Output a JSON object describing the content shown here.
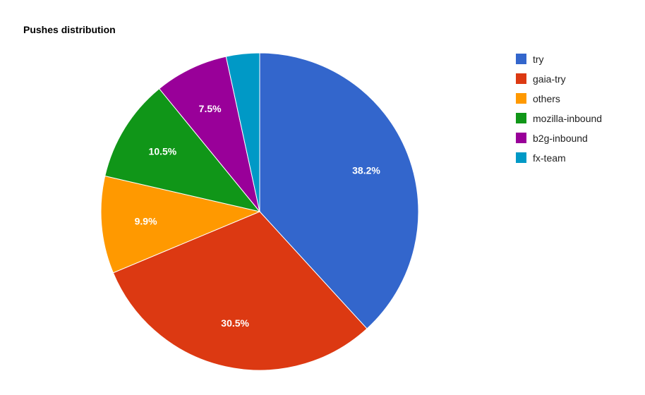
{
  "chart_data": {
    "type": "pie",
    "title": "Pushes distribution",
    "slices": [
      {
        "label": "try",
        "value": 38.2,
        "display": "38.2%",
        "color": "#3366cc"
      },
      {
        "label": "gaia-try",
        "value": 30.5,
        "display": "30.5%",
        "color": "#dc3912"
      },
      {
        "label": "others",
        "value": 9.9,
        "display": "9.9%",
        "color": "#ff9900"
      },
      {
        "label": "mozilla-inbound",
        "value": 10.5,
        "display": "10.5%",
        "color": "#109618"
      },
      {
        "label": "b2g-inbound",
        "value": 7.5,
        "display": "7.5%",
        "color": "#990099"
      },
      {
        "label": "fx-team",
        "value": 3.4,
        "display": "",
        "color": "#0099c6"
      }
    ],
    "legend_position": "right"
  }
}
